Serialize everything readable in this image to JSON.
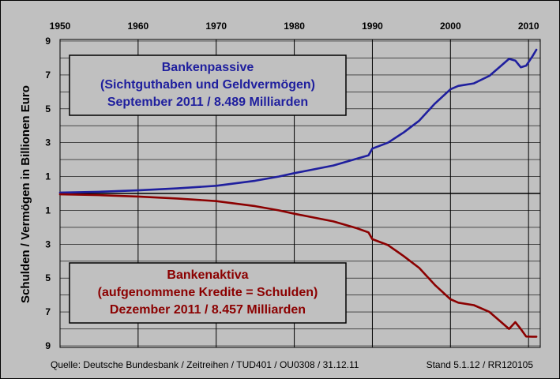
{
  "chart_data": {
    "type": "line",
    "x_ticks": [
      "1950",
      "1960",
      "1970",
      "1980",
      "1990",
      "2000",
      "2010"
    ],
    "y_ticks_upper": [
      "9",
      "7",
      "5",
      "3",
      "1"
    ],
    "y_ticks_lower": [
      "1",
      "3",
      "5",
      "7",
      "9"
    ],
    "ylabel": "Schulden / Vermögen in Billionen Euro",
    "xlim": [
      1950,
      2011.5
    ],
    "ylim_upper": [
      0,
      9
    ],
    "ylim_lower": [
      0,
      9
    ],
    "grid": true,
    "series": [
      {
        "name": "Bankenpassive",
        "color": "#1f1f9e",
        "direction": "up",
        "x": [
          1950,
          1955,
          1960,
          1965,
          1970,
          1975,
          1978,
          1980,
          1985,
          1988,
          1989.5,
          1990,
          1992,
          1994,
          1996,
          1998,
          2000,
          2001,
          2003,
          2005,
          2006.5,
          2007.5,
          2008.3,
          2009,
          2009.7,
          2010.5,
          2011
        ],
        "y": [
          0.05,
          0.1,
          0.18,
          0.3,
          0.45,
          0.75,
          1.0,
          1.2,
          1.65,
          2.05,
          2.25,
          2.65,
          3.0,
          3.6,
          4.3,
          5.3,
          6.15,
          6.35,
          6.5,
          6.95,
          7.55,
          7.95,
          7.85,
          7.45,
          7.55,
          8.1,
          8.489
        ]
      },
      {
        "name": "Bankenaktiva",
        "color": "#8b0000",
        "direction": "down",
        "x": [
          1950,
          1955,
          1960,
          1965,
          1970,
          1975,
          1978,
          1980,
          1985,
          1988,
          1989.5,
          1990,
          1992,
          1994,
          1996,
          1998,
          2000,
          2001,
          2003,
          2005,
          2006.5,
          2007.5,
          2008.3,
          2009,
          2009.7,
          2010.5,
          2011
        ],
        "y": [
          0.05,
          0.1,
          0.18,
          0.3,
          0.45,
          0.75,
          1.0,
          1.2,
          1.65,
          2.05,
          2.3,
          2.7,
          3.05,
          3.7,
          4.4,
          5.4,
          6.25,
          6.45,
          6.6,
          7.0,
          7.6,
          8.0,
          7.6,
          8.0,
          8.45,
          8.457,
          8.457
        ]
      }
    ]
  },
  "upper_box": {
    "line1": "Bankenpassive",
    "line2": "(Sichtguthaben und Geldvermögen)",
    "line3": "September 2011 / 8.489 Milliarden",
    "text_color": "#1f1f9e"
  },
  "lower_box": {
    "line1": "Bankenaktiva",
    "line2": "(aufgenommene Kredite = Schulden)",
    "line3": "Dezember 2011 / 8.457 Milliarden",
    "text_color": "#8b0000"
  },
  "footer": {
    "source": "Quelle: Deutsche Bundesbank / Zeitreihen / TUD401 / OU0308 / 31.12.11",
    "stand": "Stand 5.1.12 / RR120105"
  }
}
